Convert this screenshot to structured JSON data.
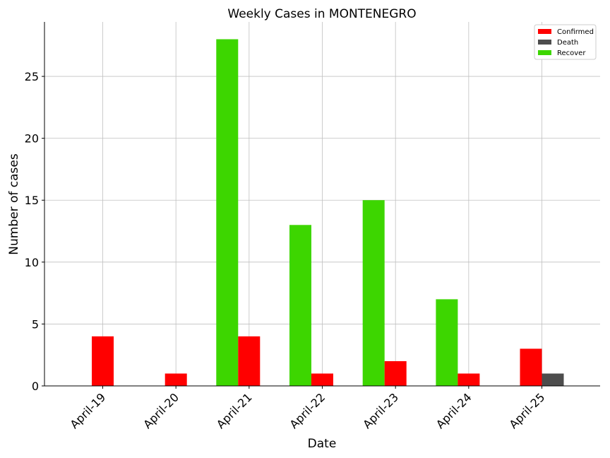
{
  "chart_data": {
    "type": "bar",
    "title": "Weekly Cases in MONTENEGRO",
    "xlabel": "Date",
    "ylabel": "Number of cases",
    "categories": [
      "April-19",
      "April-20",
      "April-21",
      "April-22",
      "April-23",
      "April-24",
      "April-25"
    ],
    "series": [
      {
        "name": "Confirmed",
        "color": "#ff0000",
        "values": [
          4,
          1,
          4,
          1,
          2,
          1,
          3
        ]
      },
      {
        "name": "Death",
        "color": "#4d4d4d",
        "values": [
          0,
          0,
          0,
          0,
          0,
          0,
          1
        ]
      },
      {
        "name": "Recover",
        "color": "#3dd600",
        "values": [
          0,
          0,
          28,
          13,
          15,
          7,
          0
        ]
      }
    ],
    "ylim": [
      0,
      29.4
    ],
    "yticks": [
      0,
      5,
      10,
      15,
      20,
      25
    ],
    "grid": true,
    "legend_position": "top-right"
  }
}
